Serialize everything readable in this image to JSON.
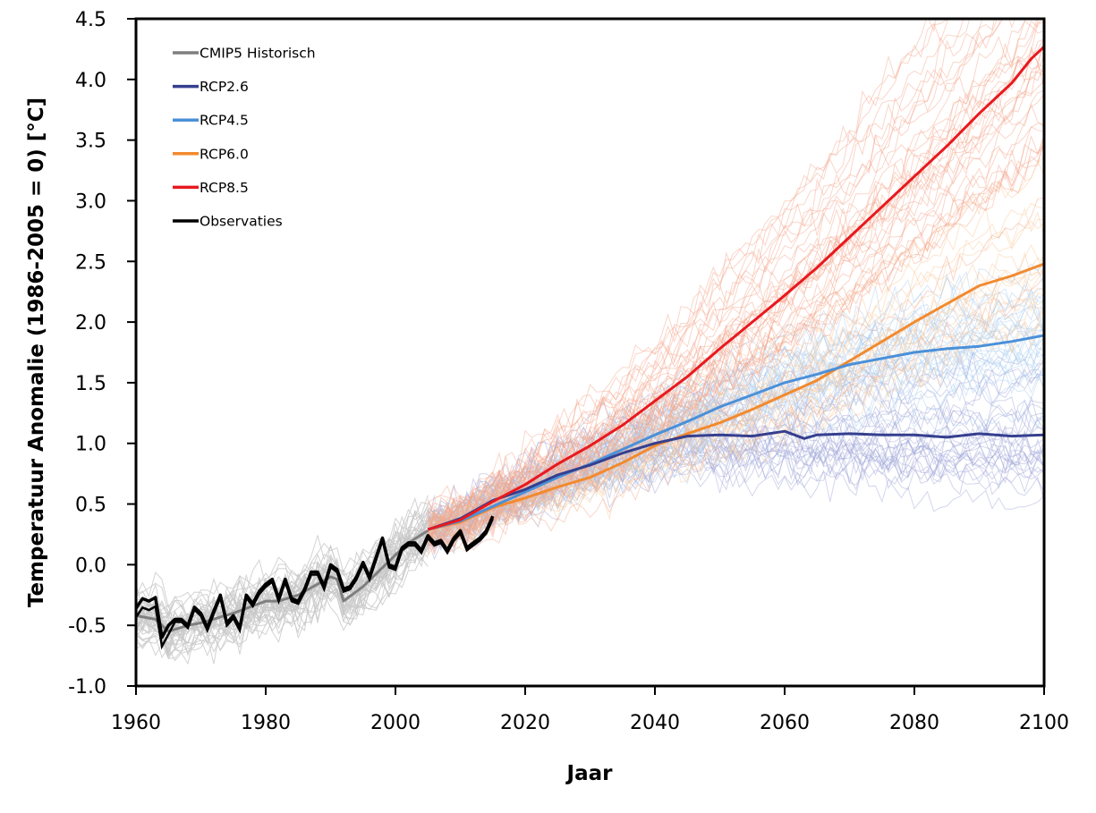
{
  "chart_data": {
    "type": "line",
    "title": "",
    "xlabel": "Jaar",
    "ylabel": "Temperatuur Anomalie (1986-2005 = 0) [°C]",
    "xlim": [
      1960,
      2100
    ],
    "ylim": [
      -1.0,
      4.5
    ],
    "grid": false,
    "legend_position": "top-left",
    "x_ticks": [
      1960,
      1980,
      2000,
      2020,
      2040,
      2060,
      2080,
      2100
    ],
    "x_tick_labels": [
      "1960",
      "1980",
      "2000",
      "2020",
      "2040",
      "2060",
      "2080",
      "2100"
    ],
    "y_ticks": [
      -1.0,
      -0.5,
      0.0,
      0.5,
      1.0,
      1.5,
      2.0,
      2.5,
      3.0,
      3.5,
      4.0,
      4.5
    ],
    "y_tick_labels": [
      "-1.0",
      "-0.5",
      "0.0",
      "0.5",
      "1.0",
      "1.5",
      "2.0",
      "2.5",
      "3.0",
      "3.5",
      "4.0",
      "4.5"
    ],
    "legend": [
      {
        "label": "CMIP5 Historisch",
        "color": "#7f7f7f"
      },
      {
        "label": "RCP2.6",
        "color": "#353f8f"
      },
      {
        "label": "RCP4.5",
        "color": "#4a90d9"
      },
      {
        "label": "RCP6.0",
        "color": "#f28a2e"
      },
      {
        "label": "RCP8.5",
        "color": "#e8191f"
      },
      {
        "label": "Observaties",
        "color": "#000000"
      }
    ],
    "series": [
      {
        "name": "CMIP5 Historisch",
        "color": "#7f7f7f",
        "x": [
          1960,
          1963,
          1965,
          1968,
          1970,
          1975,
          1980,
          1982,
          1985,
          1990,
          1991,
          1992,
          1995,
          2000,
          2002,
          2005
        ],
        "values": [
          -0.42,
          -0.45,
          -0.55,
          -0.5,
          -0.48,
          -0.4,
          -0.3,
          -0.3,
          -0.25,
          -0.1,
          -0.12,
          -0.3,
          -0.18,
          0.08,
          0.18,
          0.28
        ]
      },
      {
        "name": "RCP2.6",
        "color": "#353f8f",
        "x": [
          2005,
          2010,
          2015,
          2020,
          2025,
          2030,
          2035,
          2040,
          2045,
          2050,
          2055,
          2060,
          2063,
          2065,
          2070,
          2075,
          2080,
          2085,
          2090,
          2095,
          2100
        ],
        "values": [
          0.29,
          0.38,
          0.53,
          0.62,
          0.74,
          0.82,
          0.92,
          1.0,
          1.06,
          1.07,
          1.06,
          1.1,
          1.04,
          1.07,
          1.08,
          1.07,
          1.07,
          1.05,
          1.08,
          1.06,
          1.07
        ]
      },
      {
        "name": "RCP4.5",
        "color": "#4a90d9",
        "x": [
          2005,
          2010,
          2015,
          2020,
          2025,
          2030,
          2035,
          2040,
          2045,
          2050,
          2055,
          2060,
          2065,
          2070,
          2075,
          2080,
          2085,
          2090,
          2095,
          2100
        ],
        "values": [
          0.29,
          0.36,
          0.48,
          0.6,
          0.72,
          0.83,
          0.95,
          1.07,
          1.18,
          1.3,
          1.4,
          1.5,
          1.57,
          1.65,
          1.7,
          1.75,
          1.78,
          1.8,
          1.84,
          1.89
        ]
      },
      {
        "name": "RCP6.0",
        "color": "#f28a2e",
        "x": [
          2005,
          2010,
          2015,
          2020,
          2025,
          2030,
          2035,
          2040,
          2045,
          2050,
          2055,
          2060,
          2065,
          2070,
          2075,
          2080,
          2085,
          2090,
          2095,
          2100
        ],
        "values": [
          0.29,
          0.35,
          0.47,
          0.55,
          0.64,
          0.72,
          0.84,
          0.98,
          1.08,
          1.17,
          1.28,
          1.4,
          1.52,
          1.68,
          1.84,
          2.0,
          2.15,
          2.3,
          2.38,
          2.48
        ]
      },
      {
        "name": "RCP8.5",
        "color": "#e8191f",
        "x": [
          2005,
          2010,
          2015,
          2020,
          2025,
          2030,
          2035,
          2040,
          2045,
          2050,
          2055,
          2060,
          2065,
          2070,
          2075,
          2080,
          2085,
          2090,
          2095,
          2098,
          2100
        ],
        "values": [
          0.29,
          0.37,
          0.52,
          0.66,
          0.83,
          0.98,
          1.15,
          1.35,
          1.55,
          1.78,
          2.0,
          2.22,
          2.45,
          2.7,
          2.95,
          3.2,
          3.45,
          3.72,
          3.97,
          4.17,
          4.27
        ]
      },
      {
        "name": "Observaties",
        "color": "#000000",
        "x": [
          1960,
          1961,
          1962,
          1963,
          1964,
          1965,
          1966,
          1967,
          1968,
          1969,
          1970,
          1971,
          1972,
          1973,
          1974,
          1975,
          1976,
          1977,
          1978,
          1979,
          1980,
          1981,
          1982,
          1983,
          1984,
          1985,
          1986,
          1987,
          1988,
          1989,
          1990,
          1991,
          1992,
          1993,
          1994,
          1995,
          1996,
          1997,
          1998,
          1999,
          2000,
          2001,
          2002,
          2003,
          2004,
          2005,
          2006,
          2007,
          2008,
          2009,
          2010,
          2011,
          2012,
          2013,
          2014,
          2015
        ],
        "values": [
          -0.36,
          -0.28,
          -0.3,
          -0.27,
          -0.6,
          -0.5,
          -0.45,
          -0.45,
          -0.5,
          -0.35,
          -0.4,
          -0.52,
          -0.38,
          -0.25,
          -0.48,
          -0.42,
          -0.52,
          -0.25,
          -0.32,
          -0.22,
          -0.16,
          -0.12,
          -0.28,
          -0.12,
          -0.28,
          -0.3,
          -0.2,
          -0.06,
          -0.06,
          -0.18,
          0.0,
          -0.04,
          -0.2,
          -0.18,
          -0.1,
          0.02,
          -0.1,
          0.06,
          0.22,
          0.0,
          -0.02,
          0.14,
          0.18,
          0.18,
          0.12,
          0.24,
          0.18,
          0.2,
          0.12,
          0.22,
          0.28,
          0.14,
          0.18,
          0.22,
          0.28,
          0.4
        ]
      }
    ],
    "ensembles": [
      {
        "name": "CMIP5 Historisch ensemble",
        "color": "#c8c8c8",
        "from": 1960,
        "to": 2005,
        "members": 40,
        "spread": 0.28
      },
      {
        "name": "RCP2.6 ensemble",
        "color": "#9ea4d8",
        "from": 2005,
        "to": 2100,
        "members": 30,
        "spread": 0.55
      },
      {
        "name": "RCP4.5 ensemble",
        "color": "#a9cbf0",
        "from": 2005,
        "to": 2100,
        "members": 30,
        "spread": 0.5
      },
      {
        "name": "RCP6.0 ensemble",
        "color": "#f9c79a",
        "from": 2005,
        "to": 2100,
        "members": 20,
        "spread": 0.5
      },
      {
        "name": "RCP8.5 ensemble",
        "color": "#f3a58a",
        "from": 2005,
        "to": 2100,
        "members": 40,
        "spread": 0.7
      }
    ]
  }
}
